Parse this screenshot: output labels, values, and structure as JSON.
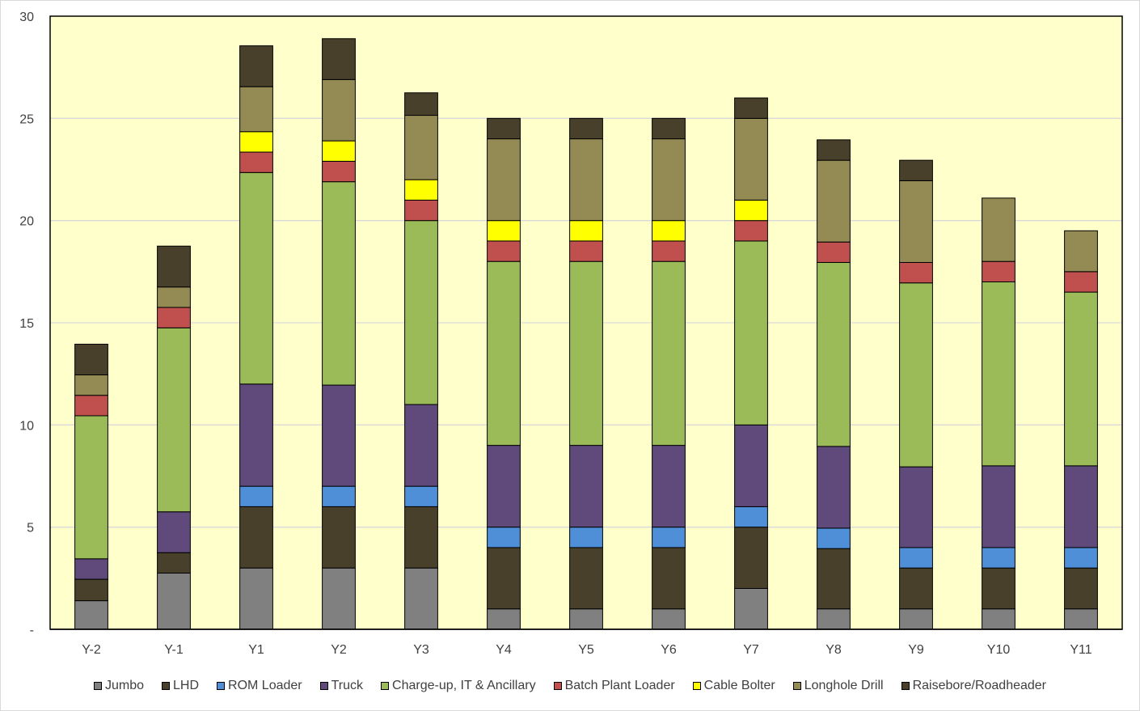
{
  "chart_data": {
    "type": "bar",
    "stacked": true,
    "title": "",
    "xlabel": "",
    "ylabel": "",
    "ylim": [
      0,
      30
    ],
    "yticks": [
      0,
      5,
      10,
      15,
      20,
      25,
      30
    ],
    "ytick_labels": [
      "-",
      "5",
      "10",
      "15",
      "20",
      "25",
      "30"
    ],
    "grid": true,
    "plot_background": "#ffffcc",
    "legend_position": "bottom",
    "categories": [
      "Y-2",
      "Y-1",
      "Y1",
      "Y2",
      "Y3",
      "Y4",
      "Y5",
      "Y6",
      "Y7",
      "Y8",
      "Y9",
      "Y10",
      "Y11"
    ],
    "series": [
      {
        "name": "Jumbo",
        "color": "#808080",
        "values": [
          1.4,
          2.75,
          3,
          3,
          3,
          1,
          1,
          1,
          2,
          1,
          1,
          1,
          1
        ]
      },
      {
        "name": "LHD",
        "color": "#48402b",
        "values": [
          1.05,
          1,
          3,
          3,
          3,
          3,
          3,
          3,
          3,
          2.95,
          2,
          2,
          2
        ]
      },
      {
        "name": "ROM Loader",
        "color": "#4e8fd8",
        "values": [
          0,
          0,
          1,
          1,
          1,
          1,
          1,
          1,
          1,
          1,
          1,
          1,
          1
        ]
      },
      {
        "name": "Truck",
        "color": "#604a7b",
        "values": [
          1,
          2,
          5,
          4.95,
          4,
          4,
          4,
          4,
          4,
          4,
          3.95,
          4,
          4
        ]
      },
      {
        "name": "Charge-up, IT & Ancillary",
        "color": "#9bbb59",
        "values": [
          7,
          9,
          10.35,
          9.95,
          9,
          9,
          9,
          9,
          9,
          9,
          9,
          9,
          8.5
        ]
      },
      {
        "name": "Batch Plant Loader",
        "color": "#c0504d",
        "values": [
          1,
          1,
          1,
          1,
          1,
          1,
          1,
          1,
          1,
          1,
          1,
          1,
          1
        ]
      },
      {
        "name": "Cable Bolter",
        "color": "#ffff00",
        "values": [
          0,
          0,
          1,
          1,
          1,
          1,
          1,
          1,
          1,
          0,
          0,
          0,
          0
        ]
      },
      {
        "name": "Longhole Drill",
        "color": "#948a54",
        "values": [
          1,
          1,
          2.2,
          3,
          3.15,
          4,
          4,
          4,
          4,
          4,
          4,
          3.1,
          2
        ]
      },
      {
        "name": "Raisebore/Roadheader",
        "color": "#48402b",
        "values": [
          1.5,
          2,
          2,
          2,
          1.1,
          1,
          1,
          1,
          1,
          1,
          1,
          0,
          0
        ]
      }
    ]
  }
}
